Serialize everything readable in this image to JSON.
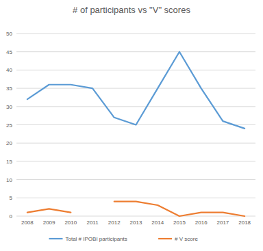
{
  "chart_data": {
    "type": "line",
    "title": "# of participants vs \"V\" scores",
    "categories": [
      "2008",
      "2009",
      "2010",
      "2011",
      "2012",
      "2013",
      "2014",
      "2015",
      "2016",
      "2017",
      "2018"
    ],
    "series": [
      {
        "name": "Total # IPOBI participants",
        "color": "#5b9bd5",
        "values": [
          32,
          36,
          36,
          35,
          27,
          25,
          35,
          45,
          35,
          26,
          24
        ]
      },
      {
        "name": "# V score",
        "color": "#ed7d31",
        "values": [
          1,
          2,
          1,
          null,
          4,
          4,
          3,
          0,
          1,
          1,
          0
        ]
      }
    ],
    "ylim": [
      0,
      50
    ],
    "yticks": [
      0,
      5,
      10,
      15,
      20,
      25,
      30,
      35,
      40,
      45,
      50
    ],
    "grid": true,
    "legend": "bottom"
  }
}
